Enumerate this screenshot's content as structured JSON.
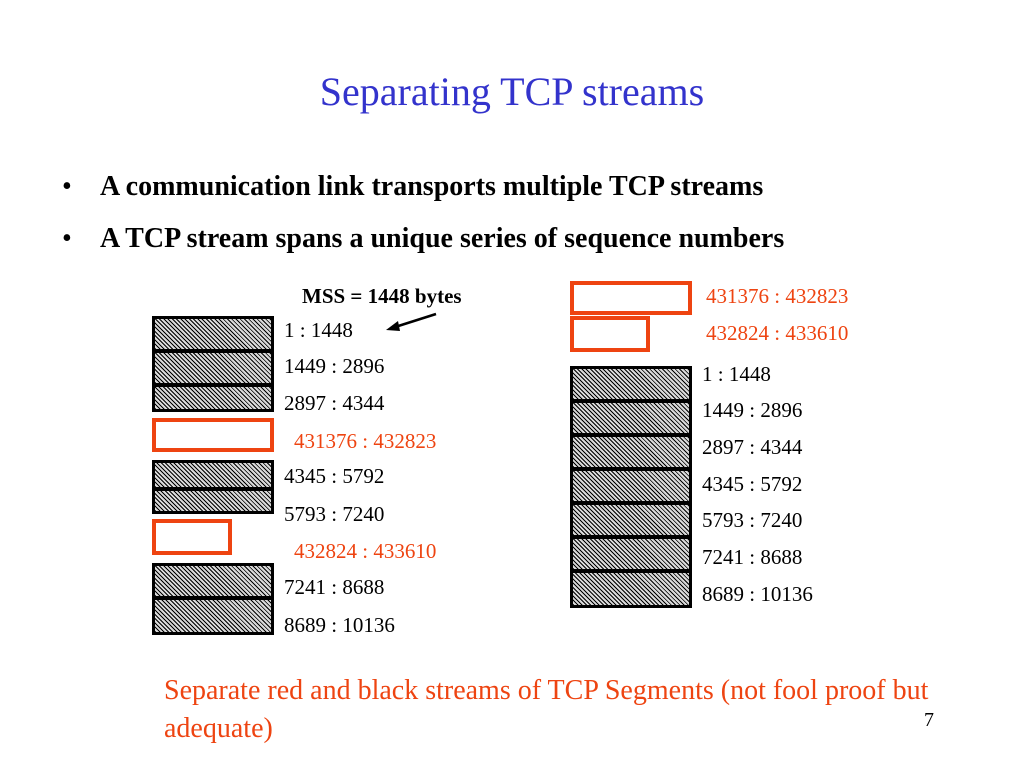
{
  "title": "Separating TCP streams",
  "bullets": [
    "A communication link transports multiple TCP streams",
    "A TCP stream spans a unique series of sequence numbers"
  ],
  "mss_label": "MSS = 1448 bytes",
  "left_stream": [
    {
      "label": "1 : 1448",
      "kind": "black"
    },
    {
      "label": "1449 : 2896",
      "kind": "black"
    },
    {
      "label": "2897 : 4344",
      "kind": "black"
    },
    {
      "label": "431376 : 432823",
      "kind": "red"
    },
    {
      "label": "4345 : 5792",
      "kind": "black"
    },
    {
      "label": "5793 : 7240",
      "kind": "black"
    },
    {
      "label": "432824 : 433610",
      "kind": "red"
    },
    {
      "label": "7241 : 8688",
      "kind": "black"
    },
    {
      "label": "8689 : 10136",
      "kind": "black"
    }
  ],
  "right_red_stream": [
    {
      "label": "431376 : 432823"
    },
    {
      "label": "432824 : 433610"
    }
  ],
  "right_black_stream": [
    {
      "label": "1 : 1448"
    },
    {
      "label": "1449 : 2896"
    },
    {
      "label": "2897 : 4344"
    },
    {
      "label": "4345 : 5792"
    },
    {
      "label": "5793 : 7240"
    },
    {
      "label": "7241 : 8688"
    },
    {
      "label": "8689 : 10136"
    }
  ],
  "caption": "Separate red and black streams of TCP Segments (not fool proof but adequate)",
  "page_number": "7",
  "colors": {
    "title": "#3333cc",
    "red": "#ee4411",
    "black": "#000000"
  }
}
